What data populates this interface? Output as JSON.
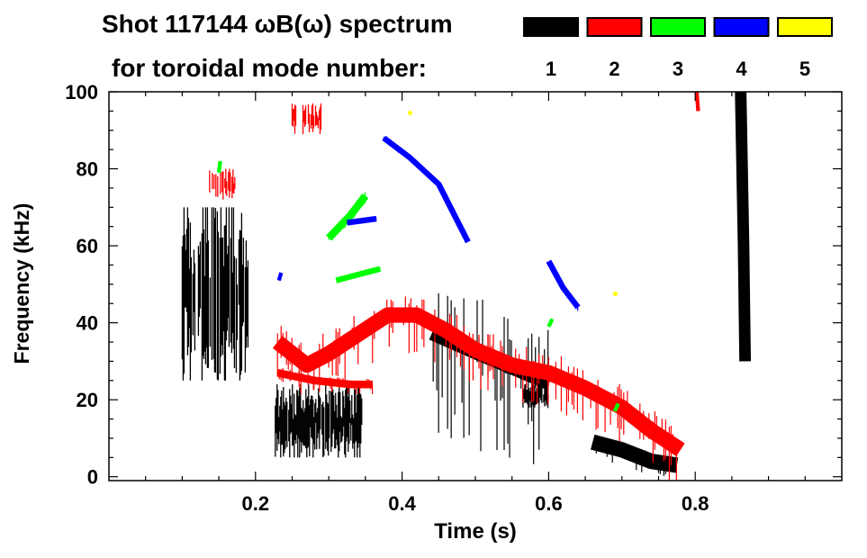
{
  "chart_data": {
    "type": "heatmap",
    "title": "Shot 117144 ωB(ω) spectrum",
    "subtitle": "for toroidal mode number:",
    "xlabel": "Time (s)",
    "ylabel": "Frequency (kHz)",
    "xlim": [
      0,
      1.0
    ],
    "ylim": [
      -1,
      100
    ],
    "xticks": [
      {
        "v": 0.2,
        "label": "0.2"
      },
      {
        "v": 0.4,
        "label": "0.4"
      },
      {
        "v": 0.6,
        "label": "0.6"
      },
      {
        "v": 0.8,
        "label": "0.8"
      }
    ],
    "yticks": [
      {
        "v": 0,
        "label": "0"
      },
      {
        "v": 20,
        "label": "20"
      },
      {
        "v": 40,
        "label": "40"
      },
      {
        "v": 60,
        "label": "60"
      },
      {
        "v": 80,
        "label": "80"
      },
      {
        "v": 100,
        "label": "100"
      }
    ],
    "legend_position": "top-right",
    "legend": [
      {
        "label": "1",
        "color": "#000000"
      },
      {
        "label": "2",
        "color": "#ff0000"
      },
      {
        "label": "3",
        "color": "#00ff00"
      },
      {
        "label": "4",
        "color": "#0000ff"
      },
      {
        "label": "5",
        "color": "#ffff00"
      }
    ],
    "series": [
      {
        "mode": 1,
        "color": "#000000",
        "features": [
          {
            "kind": "patch",
            "t": [
              0.1,
              0.19
            ],
            "f": [
              25,
              70
            ],
            "density": 0.8
          },
          {
            "kind": "patch",
            "t": [
              0.227,
              0.345
            ],
            "f": [
              5,
              24
            ],
            "density": 0.95
          },
          {
            "kind": "band",
            "points": [
              [
                0.44,
                37
              ],
              [
                0.5,
                32
              ],
              [
                0.55,
                28
              ],
              [
                0.6,
                24
              ]
            ],
            "width": 3,
            "streak": 25
          },
          {
            "kind": "patch",
            "t": [
              0.565,
              0.6
            ],
            "f": [
              18,
              24
            ],
            "density": 0.9
          },
          {
            "kind": "band",
            "points": [
              [
                0.66,
                9
              ],
              [
                0.7,
                7
              ],
              [
                0.74,
                4
              ],
              [
                0.775,
                3
              ]
            ],
            "width": 4,
            "streak": 4
          },
          {
            "kind": "band",
            "points": [
              [
                0.862,
                100
              ],
              [
                0.866,
                60
              ],
              [
                0.868,
                30
              ]
            ],
            "width": 3,
            "streak": 0
          }
        ]
      },
      {
        "mode": 2,
        "color": "#ff0000",
        "features": [
          {
            "kind": "band",
            "points": [
              [
                0.23,
                35
              ],
              [
                0.27,
                29
              ],
              [
                0.3,
                32
              ],
              [
                0.34,
                37
              ],
              [
                0.38,
                42
              ],
              [
                0.42,
                42
              ],
              [
                0.46,
                38
              ],
              [
                0.5,
                33
              ],
              [
                0.55,
                29
              ],
              [
                0.6,
                27
              ],
              [
                0.65,
                23
              ],
              [
                0.7,
                18
              ],
              [
                0.74,
                12
              ],
              [
                0.78,
                7
              ]
            ],
            "width": 4,
            "streak": 10
          },
          {
            "kind": "band",
            "points": [
              [
                0.23,
                27
              ],
              [
                0.28,
                25
              ],
              [
                0.33,
                24
              ],
              [
                0.36,
                24
              ]
            ],
            "width": 2,
            "streak": 3
          },
          {
            "kind": "patch",
            "t": [
              0.13,
              0.18
            ],
            "f": [
              72,
              80
            ],
            "density": 0.5
          },
          {
            "kind": "patch",
            "t": [
              0.25,
              0.29
            ],
            "f": [
              89,
              97
            ],
            "density": 0.7
          },
          {
            "kind": "band",
            "points": [
              [
                0.802,
                100
              ],
              [
                0.804,
                95
              ]
            ],
            "width": 1,
            "streak": 0
          }
        ]
      },
      {
        "mode": 3,
        "color": "#00ff00",
        "features": [
          {
            "kind": "band",
            "points": [
              [
                0.15,
                79
              ],
              [
                0.152,
                82
              ]
            ],
            "width": 1,
            "streak": 0
          },
          {
            "kind": "band",
            "points": [
              [
                0.3,
                62
              ],
              [
                0.33,
                68
              ],
              [
                0.35,
                73
              ]
            ],
            "width": 2,
            "streak": 2
          },
          {
            "kind": "band",
            "points": [
              [
                0.31,
                51
              ],
              [
                0.35,
                53
              ],
              [
                0.37,
                54
              ]
            ],
            "width": 1.5,
            "streak": 1
          },
          {
            "kind": "band",
            "points": [
              [
                0.6,
                39
              ],
              [
                0.605,
                41
              ]
            ],
            "width": 1,
            "streak": 0
          },
          {
            "kind": "band",
            "points": [
              [
                0.69,
                17
              ],
              [
                0.695,
                19
              ]
            ],
            "width": 1,
            "streak": 0
          }
        ]
      },
      {
        "mode": 4,
        "color": "#0000ff",
        "features": [
          {
            "kind": "band",
            "points": [
              [
                0.375,
                88
              ],
              [
                0.41,
                83
              ],
              [
                0.45,
                76
              ],
              [
                0.49,
                61
              ]
            ],
            "width": 1.5,
            "streak": 1
          },
          {
            "kind": "band",
            "points": [
              [
                0.325,
                66
              ],
              [
                0.365,
                67
              ]
            ],
            "width": 1.5,
            "streak": 1
          },
          {
            "kind": "band",
            "points": [
              [
                0.6,
                56
              ],
              [
                0.62,
                49
              ],
              [
                0.64,
                44
              ]
            ],
            "width": 1.5,
            "streak": 1
          },
          {
            "kind": "band",
            "points": [
              [
                0.232,
                51
              ],
              [
                0.235,
                53
              ]
            ],
            "width": 1,
            "streak": 0
          }
        ]
      },
      {
        "mode": 5,
        "color": "#ffff00",
        "features": [
          {
            "kind": "band",
            "points": [
              [
                0.41,
                94
              ],
              [
                0.412,
                95
              ]
            ],
            "width": 1,
            "streak": 0
          },
          {
            "kind": "band",
            "points": [
              [
                0.69,
                47
              ],
              [
                0.692,
                48
              ]
            ],
            "width": 1,
            "streak": 0
          }
        ]
      }
    ]
  }
}
